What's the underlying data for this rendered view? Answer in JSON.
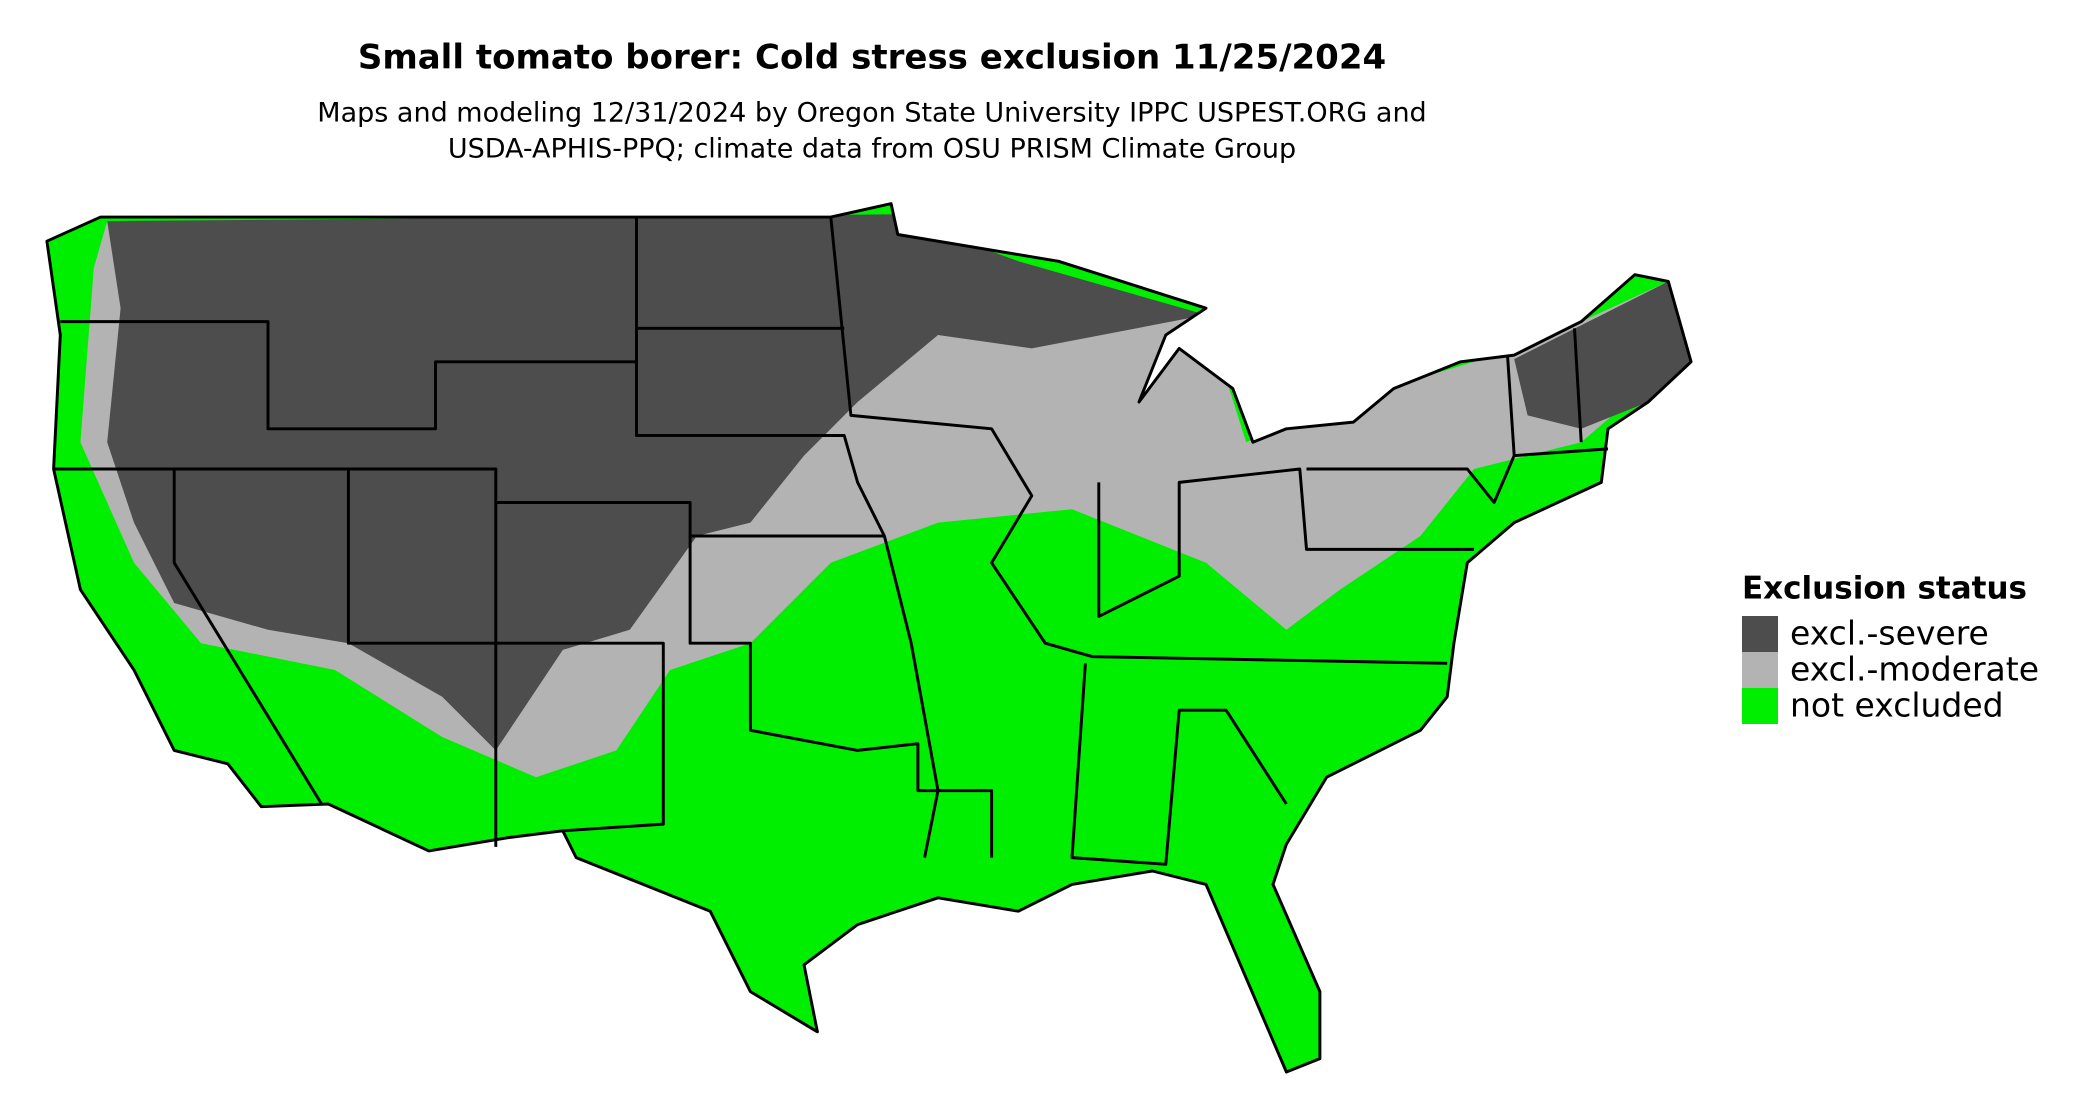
{
  "map": {
    "title": "Small tomato borer: Cold stress exclusion 11/25/2024",
    "subtitle": [
      "Maps and modeling 12/31/2024 by Oregon State University IPPC USPEST.ORG and",
      "USDA-APHIS-PPQ; climate data from OSU PRISM Climate Group"
    ],
    "legend": {
      "title": "Exclusion status",
      "items": [
        {
          "label": "excl.-severe",
          "color": "#4d4d4d"
        },
        {
          "label": "excl.-moderate",
          "color": "#b3b3b3"
        },
        {
          "label": "not excluded",
          "color": "#00ee00"
        }
      ]
    }
  }
}
